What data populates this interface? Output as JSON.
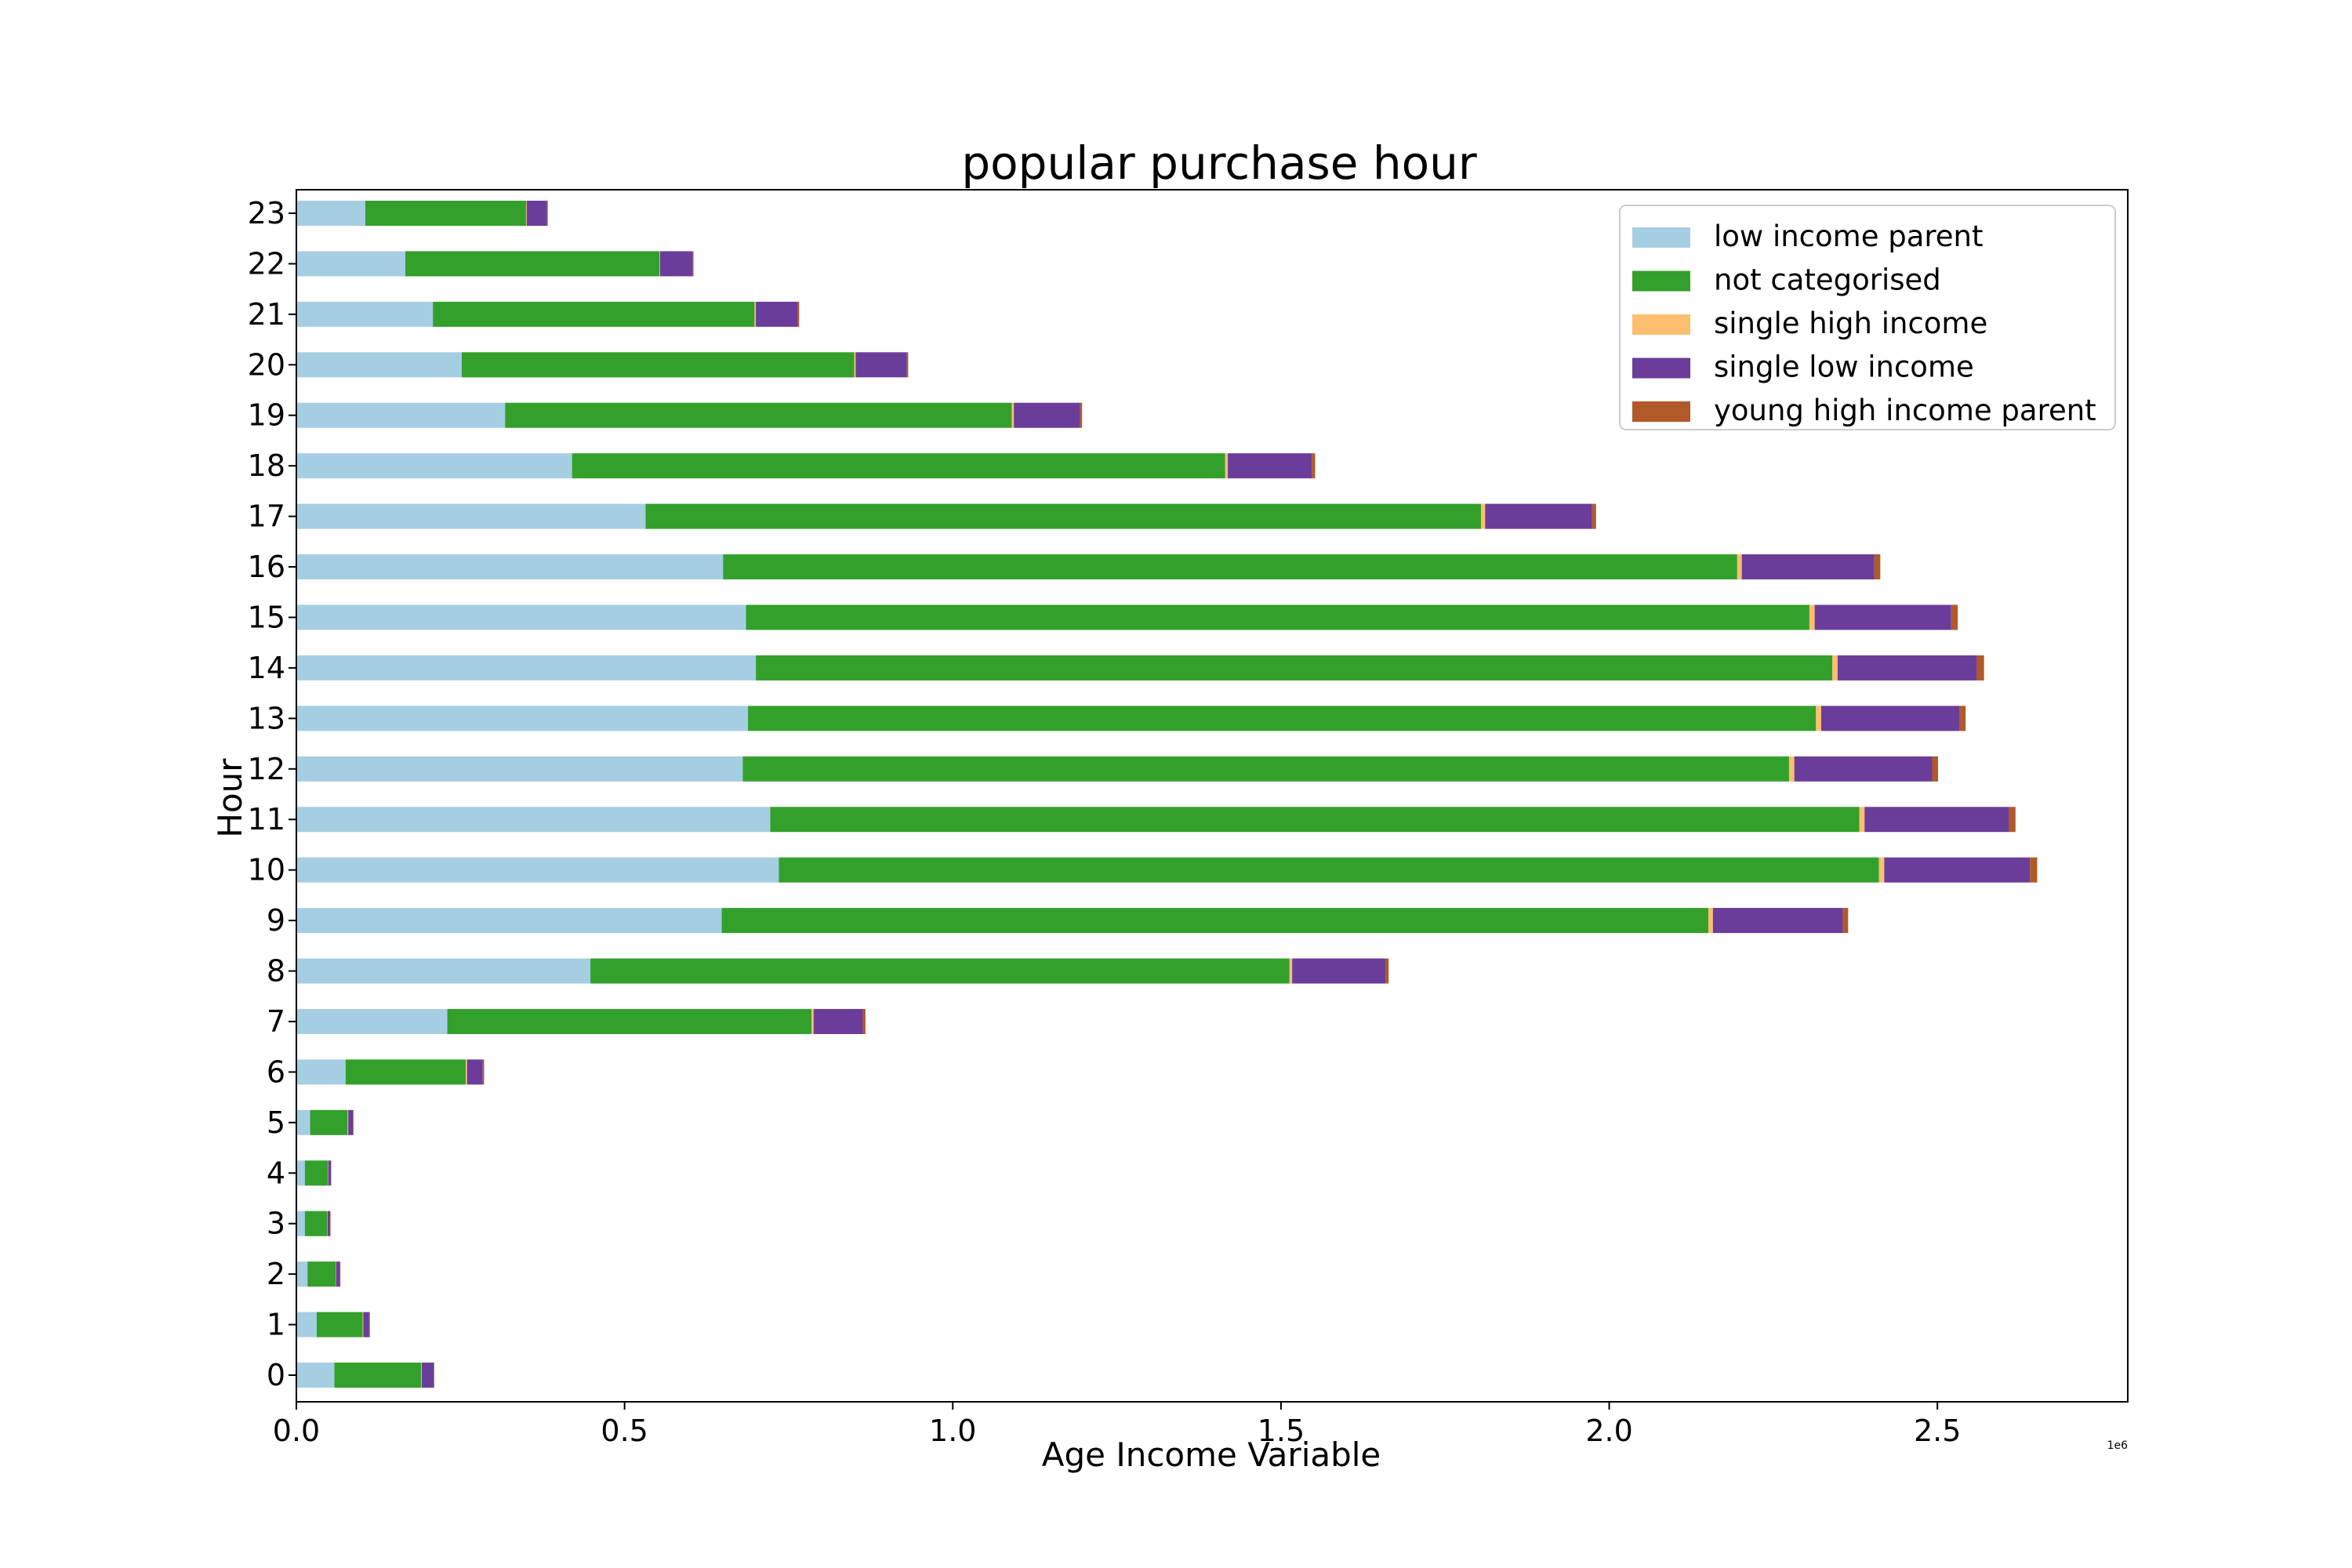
{
  "chart_data": {
    "type": "bar",
    "orientation": "horizontal",
    "stacked": true,
    "title": "popular purchase hour",
    "xlabel": "Age Income Variable",
    "ylabel": "Hour",
    "x_offset_label": "1e6",
    "xlim": [
      0,
      2790000
    ],
    "x_ticks": [
      0,
      500000,
      1000000,
      1500000,
      2000000,
      2500000
    ],
    "x_tick_labels": [
      "0.0",
      "0.5",
      "1.0",
      "1.5",
      "2.0",
      "2.5"
    ],
    "grid": false,
    "legend_position": "top-right",
    "categories": [
      "0",
      "1",
      "2",
      "3",
      "4",
      "5",
      "6",
      "7",
      "8",
      "9",
      "10",
      "11",
      "12",
      "13",
      "14",
      "15",
      "16",
      "17",
      "18",
      "19",
      "20",
      "21",
      "22",
      "23"
    ],
    "series": [
      {
        "name": "low income parent",
        "color": "#a6cee3",
        "values": [
          58000,
          31000,
          17000,
          13000,
          13000,
          21000,
          75000,
          230000,
          448000,
          648000,
          735000,
          722000,
          680000,
          688000,
          700000,
          685000,
          650000,
          532000,
          420000,
          318000,
          252000,
          208000,
          166000,
          105000
        ]
      },
      {
        "name": "not categorised",
        "color": "#33a02c",
        "values": [
          132000,
          70000,
          43000,
          34000,
          35000,
          57000,
          183000,
          555000,
          1065000,
          1503000,
          1676000,
          1659000,
          1594000,
          1627000,
          1640000,
          1620000,
          1545000,
          1273000,
          995000,
          772000,
          598000,
          490000,
          387000,
          245000
        ]
      },
      {
        "name": "single high income",
        "color": "#fdbf6f",
        "values": [
          1000,
          1000,
          500,
          500,
          500,
          1000,
          2000,
          3000,
          4000,
          7000,
          8000,
          8000,
          8000,
          8000,
          8000,
          8000,
          7000,
          6000,
          4000,
          3000,
          2000,
          2000,
          1000,
          1000
        ]
      },
      {
        "name": "single low income",
        "color": "#6a3d9a",
        "values": [
          18000,
          9000,
          6000,
          4000,
          4000,
          7000,
          24000,
          75000,
          142000,
          198000,
          222000,
          220000,
          210000,
          211000,
          212000,
          208000,
          202000,
          163000,
          128000,
          101000,
          78000,
          64000,
          50000,
          31000
        ]
      },
      {
        "name": "young high income parent",
        "color": "#b15928",
        "values": [
          1000,
          1000,
          500,
          500,
          500,
          1000,
          2000,
          4000,
          5000,
          8000,
          11000,
          10000,
          9000,
          9000,
          11000,
          10000,
          9000,
          6000,
          5000,
          3000,
          2000,
          2000,
          1000,
          1000
        ]
      }
    ]
  }
}
